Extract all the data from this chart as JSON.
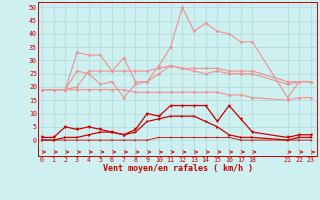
{
  "x": [
    0,
    1,
    2,
    3,
    4,
    5,
    6,
    7,
    8,
    9,
    10,
    11,
    12,
    13,
    14,
    15,
    16,
    17,
    18,
    21,
    22,
    23
  ],
  "rafales_light_high": [
    19,
    19,
    19,
    33,
    32,
    32,
    26,
    31,
    22,
    22,
    28,
    35,
    50,
    41,
    44,
    41,
    40,
    37,
    37,
    16,
    22,
    22
  ],
  "moyen_light_high": [
    19,
    19,
    19,
    20,
    26,
    26,
    26,
    26,
    26,
    26,
    27,
    28,
    27,
    27,
    27,
    27,
    26,
    26,
    26,
    22,
    22,
    22
  ],
  "rafales_light_mid": [
    19,
    19,
    19,
    26,
    25,
    21,
    22,
    16,
    21,
    22,
    25,
    28,
    27,
    26,
    25,
    26,
    25,
    25,
    25,
    21,
    22,
    22
  ],
  "moyen_light_low": [
    19,
    19,
    19,
    19,
    19,
    19,
    19,
    19,
    18,
    18,
    18,
    18,
    18,
    18,
    18,
    18,
    17,
    17,
    16,
    15,
    16,
    16
  ],
  "rafales_dark": [
    1,
    1,
    5,
    4,
    5,
    4,
    3,
    2,
    4,
    10,
    9,
    13,
    13,
    13,
    13,
    7,
    13,
    8,
    3,
    1,
    2,
    2
  ],
  "moyen_dark": [
    0,
    0,
    1,
    1,
    2,
    3,
    3,
    2,
    3,
    7,
    8,
    9,
    9,
    9,
    7,
    5,
    2,
    1,
    1,
    0,
    1,
    1
  ],
  "base_dark": [
    0,
    0,
    0,
    0,
    0,
    0,
    0,
    0,
    0,
    0,
    1,
    1,
    1,
    1,
    1,
    1,
    1,
    0,
    0,
    0,
    0,
    0
  ],
  "bg_color": "#cef0f0",
  "grid_color": "#aadada",
  "line_light": "#f09090",
  "line_dark": "#cc0000",
  "xlabel": "Vent moyen/en rafales ( km/h )",
  "yticks": [
    0,
    5,
    10,
    15,
    20,
    25,
    30,
    35,
    40,
    45,
    50
  ],
  "xticks": [
    0,
    1,
    2,
    3,
    4,
    5,
    6,
    7,
    8,
    9,
    10,
    11,
    12,
    13,
    14,
    15,
    16,
    17,
    18,
    21,
    22,
    23
  ],
  "xlim": [
    -0.3,
    23.5
  ],
  "ylim": [
    -6,
    52
  ]
}
